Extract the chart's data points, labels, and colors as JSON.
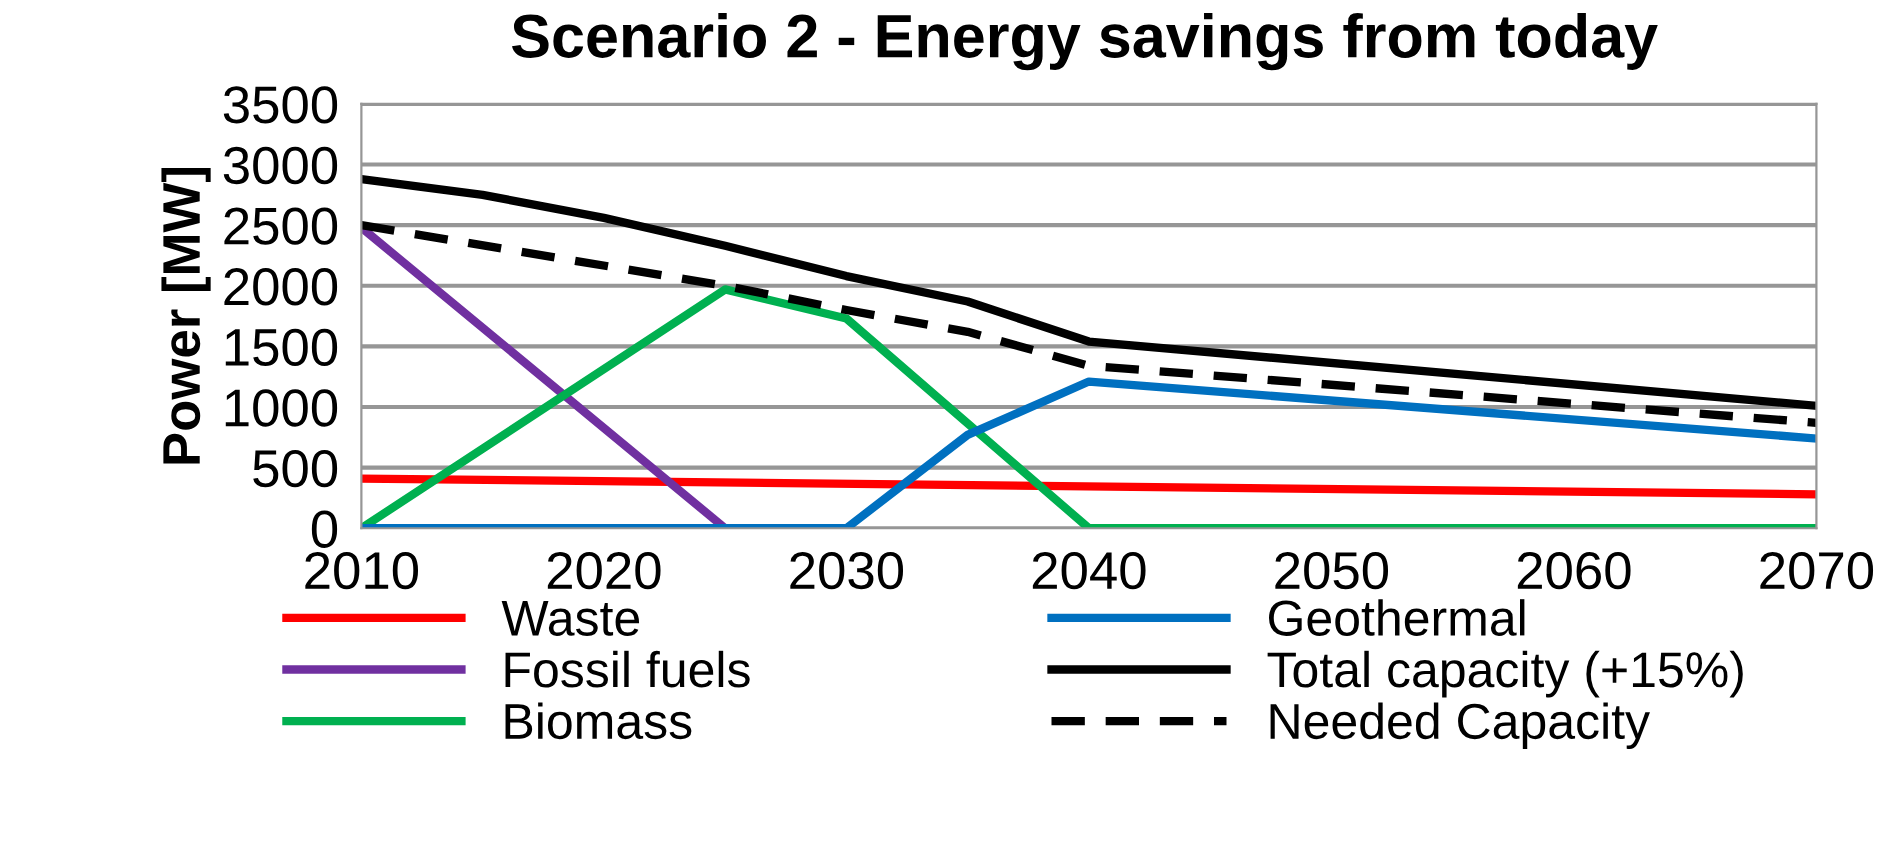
{
  "chart_data": {
    "type": "line",
    "title": "Scenario 2 - Energy savings from today",
    "ylabel": "Power [MW]",
    "xlim": [
      2010,
      2070
    ],
    "xticks": [
      2010,
      2020,
      2030,
      2040,
      2050,
      2060,
      2070
    ],
    "ylim": [
      0,
      3500
    ],
    "yticks": [
      0,
      500,
      1000,
      1500,
      2000,
      2500,
      3000,
      3500
    ],
    "grid": "y",
    "legend": "bottom",
    "series": [
      {
        "name": "Waste",
        "color": "#ff0000",
        "x": [
          2010,
          2070
        ],
        "values": [
          410,
          280
        ]
      },
      {
        "name": "Fossil fuels",
        "color": "#7030a0",
        "x": [
          2010,
          2025
        ],
        "values": [
          2480,
          0
        ]
      },
      {
        "name": "Biomass",
        "color": "#00b050",
        "x": [
          2010,
          2025,
          2030,
          2040,
          2070
        ],
        "values": [
          0,
          1970,
          1730,
          0,
          0
        ]
      },
      {
        "name": "Geothermal",
        "color": "#0070c0",
        "x": [
          2010,
          2030,
          2035,
          2040,
          2070
        ],
        "values": [
          0,
          0,
          770,
          1210,
          740
        ]
      },
      {
        "name": "Total capacity (+15%)",
        "color": "#000000",
        "x": [
          2010,
          2015,
          2020,
          2025,
          2030,
          2035,
          2040,
          2070
        ],
        "values": [
          2880,
          2750,
          2560,
          2330,
          2080,
          1870,
          1540,
          1010
        ]
      },
      {
        "name": "Needed Capacity",
        "color": "#000000",
        "line_style": "dashed",
        "x": [
          2010,
          2025,
          2030,
          2035,
          2040,
          2070
        ],
        "values": [
          2500,
          2000,
          1800,
          1620,
          1340,
          870
        ]
      }
    ]
  }
}
